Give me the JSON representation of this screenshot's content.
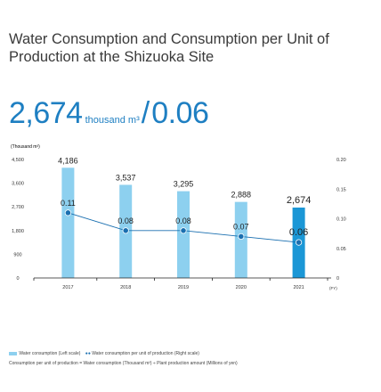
{
  "title": "Water Consumption and Consumption per Unit of Production at the Shizuoka Site",
  "headline": {
    "value_left": "2,674",
    "unit_left": "thousand m³",
    "separator": "/",
    "value_right": "0.06"
  },
  "legend": {
    "bar_label": "Water consumption (Left scale)",
    "line_label": "Water consumption per unit of production (Right scale)"
  },
  "note": "Consumption per unit of production = Water consumption (Thousand m³) ÷ Plant production amount (Millions of yen)",
  "colors": {
    "bar": "#8dd0ef",
    "bar_highlight": "#1b97d6",
    "line": "#1a6fb0",
    "title": "#3a3a3a",
    "headline": "#1e7fc2"
  },
  "chart_data": {
    "type": "bar",
    "categories": [
      "2017",
      "2018",
      "2019",
      "2020",
      "2021"
    ],
    "x_unit": "(FY)",
    "series": [
      {
        "name": "Water consumption (Left scale)",
        "type": "bar",
        "axis": "left",
        "values": [
          4186,
          3537,
          3295,
          2888,
          2674
        ],
        "labels": [
          "4,186",
          "3,537",
          "3,295",
          "2,888",
          "2,674"
        ]
      },
      {
        "name": "Water consumption per unit of production (Right scale)",
        "type": "line",
        "axis": "right",
        "values": [
          0.11,
          0.08,
          0.08,
          0.07,
          0.06
        ],
        "labels": [
          "0.11",
          "0.08",
          "0.08",
          "0.07",
          "0.06"
        ]
      }
    ],
    "ylabel": "(Thousand m³)",
    "ylim": [
      0,
      4500
    ],
    "yticks": [
      "0",
      "900",
      "1,800",
      "2,700",
      "3,600",
      "4,500"
    ],
    "ylim_right": [
      0,
      0.2
    ],
    "yticks_right": [
      "0",
      "0.05",
      "0.10",
      "0.15",
      "0.20"
    ],
    "highlight_last": true,
    "grid": false
  }
}
